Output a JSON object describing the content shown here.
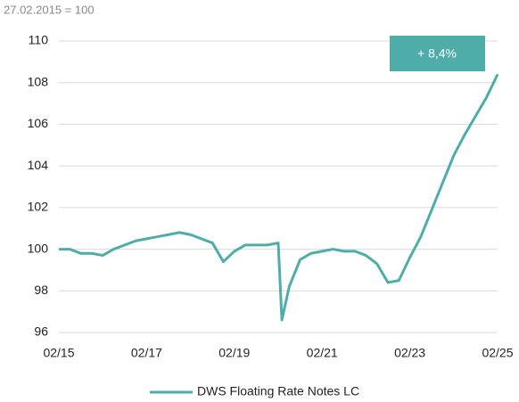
{
  "chart_data": {
    "type": "line",
    "subtitle": "27.02.2015 = 100",
    "annotation": "+ 8,4%",
    "x": [
      "02/15",
      "05/15",
      "08/15",
      "11/15",
      "02/16",
      "05/16",
      "08/16",
      "11/16",
      "02/17",
      "05/17",
      "08/17",
      "11/17",
      "02/18",
      "05/18",
      "08/18",
      "11/18",
      "02/19",
      "05/19",
      "08/19",
      "11/19",
      "02/20",
      "03/20",
      "05/20",
      "08/20",
      "11/20",
      "02/21",
      "05/21",
      "08/21",
      "11/21",
      "02/22",
      "05/22",
      "08/22",
      "11/22",
      "02/23",
      "05/23",
      "08/23",
      "11/23",
      "02/24",
      "05/24",
      "08/24",
      "11/24",
      "02/25"
    ],
    "series": [
      {
        "name": "DWS Floating Rate Notes LC",
        "color": "#4fada9",
        "values": [
          100.0,
          100.0,
          99.8,
          99.8,
          99.7,
          100.0,
          100.2,
          100.4,
          100.5,
          100.6,
          100.7,
          100.8,
          100.7,
          100.5,
          100.3,
          99.4,
          99.9,
          100.2,
          100.2,
          100.2,
          100.3,
          96.6,
          98.2,
          99.5,
          99.8,
          99.9,
          100.0,
          99.9,
          99.9,
          99.7,
          99.3,
          98.4,
          98.5,
          99.6,
          100.6,
          101.9,
          103.2,
          104.5,
          105.5,
          106.4,
          107.3,
          108.4
        ]
      }
    ],
    "xlim": [
      "02/15",
      "02/25"
    ],
    "xticks": [
      "02/15",
      "02/17",
      "02/19",
      "02/21",
      "02/23",
      "02/25"
    ],
    "ylim": [
      96,
      110
    ],
    "yticks": [
      96,
      98,
      100,
      102,
      104,
      106,
      108,
      110
    ],
    "grid": true,
    "legend": "bottom"
  }
}
